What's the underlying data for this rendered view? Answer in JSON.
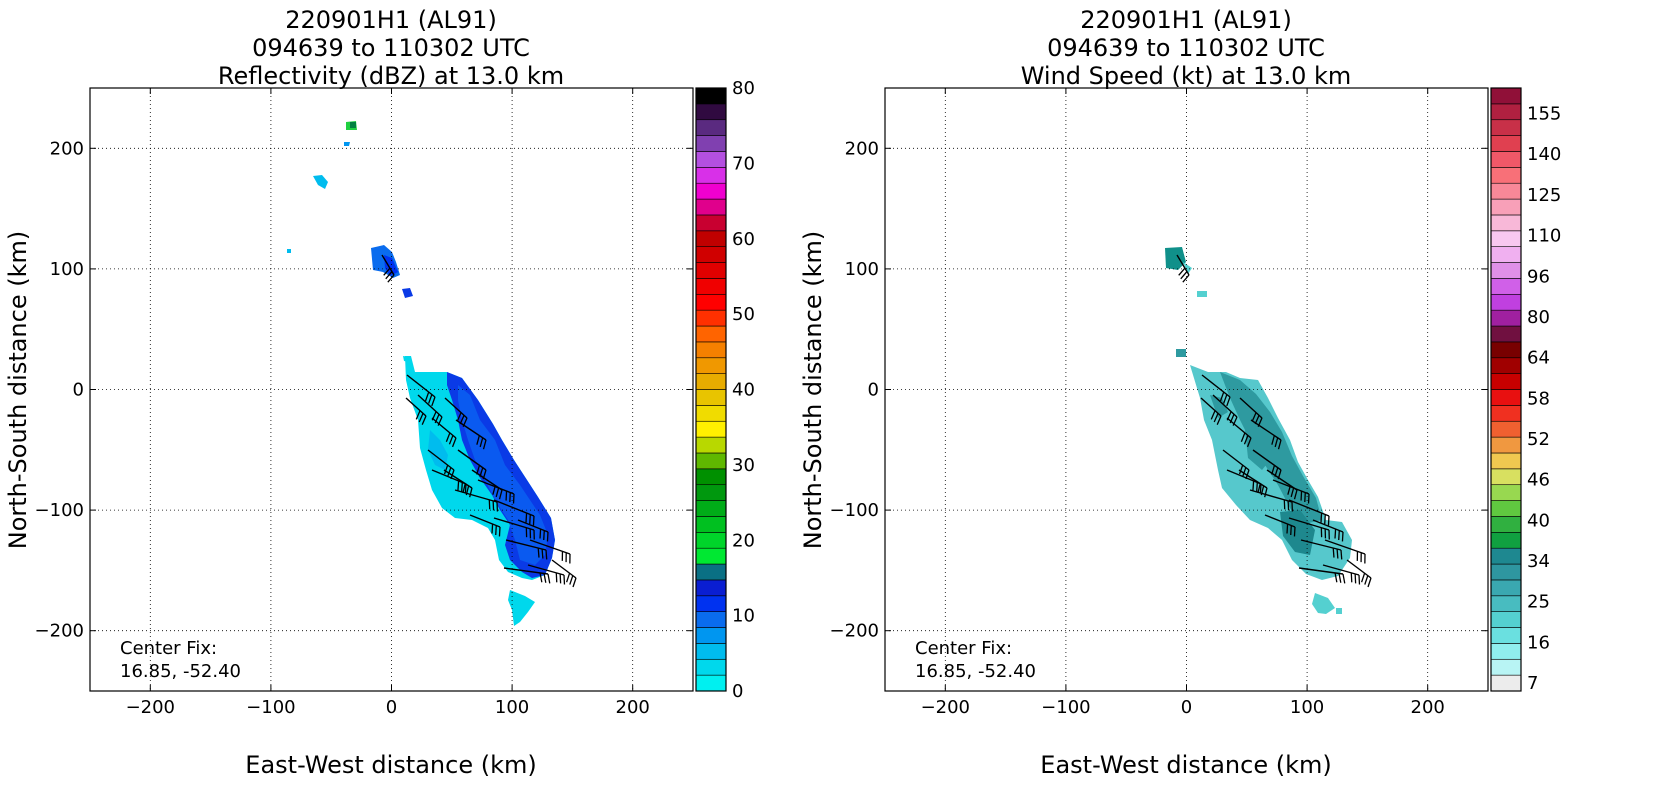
{
  "chart_data": [
    {
      "type": "heatmap",
      "title_lines": [
        "220901H1 (AL91)",
        "094639 to 110302 UTC",
        "Reflectivity (dBZ) at 13.0 km"
      ],
      "xlabel": "East-West distance (km)",
      "ylabel": "North-South distance (km)",
      "xlim": [
        -250,
        250
      ],
      "ylim": [
        -250,
        250
      ],
      "xticks": [
        -200,
        -100,
        0,
        100,
        200
      ],
      "yticks": [
        -200,
        -100,
        0,
        100,
        200
      ],
      "grid": true,
      "annotation": [
        "Center Fix:",
        "16.85, -52.40"
      ],
      "colorbar": {
        "min": 0,
        "max": 80,
        "ticks": [
          0,
          10,
          20,
          30,
          40,
          50,
          60,
          70,
          80
        ],
        "colors": [
          "#00f0f0",
          "#00d8ec",
          "#00bcee",
          "#0096f0",
          "#0a6cee",
          "#0032f0",
          "#0a1ed2",
          "#0a7084",
          "#00e832",
          "#00d42a",
          "#00c020",
          "#00ac18",
          "#00980e",
          "#009000",
          "#5fb800",
          "#b8d800",
          "#fff000",
          "#f0dc00",
          "#e8c400",
          "#e8ac00",
          "#f09800",
          "#f58000",
          "#ff6400",
          "#ff3000",
          "#ff0000",
          "#f00000",
          "#e00000",
          "#d00000",
          "#c00000",
          "#c80030",
          "#e0008c",
          "#f000d0",
          "#d830e8",
          "#b450e0",
          "#8040b0",
          "#5a2a80",
          "#300a40",
          "#000000"
        ]
      },
      "echo_cells_dbz": [
        {
          "x": 5,
          "y": -8,
          "value": 4
        },
        {
          "x": 35,
          "y": -25,
          "value": 5
        },
        {
          "x": 55,
          "y": -45,
          "value": 4
        },
        {
          "x": 60,
          "y": -80,
          "value": 4
        },
        {
          "x": 70,
          "y": -20,
          "value": 11
        },
        {
          "x": 90,
          "y": -60,
          "value": 11
        },
        {
          "x": 115,
          "y": -125,
          "value": 11
        },
        {
          "x": 110,
          "y": -165,
          "value": 4
        },
        {
          "x": -10,
          "y": 105,
          "value": 9
        },
        {
          "x": -30,
          "y": 218,
          "value": 24
        },
        {
          "x": -55,
          "y": 170,
          "value": 4
        }
      ]
    },
    {
      "type": "heatmap",
      "title_lines": [
        "220901H1 (AL91)",
        "094639 to 110302 UTC",
        "Wind Speed (kt) at 13.0 km"
      ],
      "xlabel": "East-West distance (km)",
      "ylabel": "North-South distance (km)",
      "xlim": [
        -250,
        250
      ],
      "ylim": [
        -250,
        250
      ],
      "xticks": [
        -200,
        -100,
        0,
        100,
        200
      ],
      "yticks": [
        -200,
        -100,
        0,
        100,
        200
      ],
      "grid": true,
      "annotation": [
        "Center Fix:",
        "16.85, -52.40"
      ],
      "colorbar": {
        "ticks": [
          "7",
          "16",
          "25",
          "34",
          "40",
          "46",
          "52",
          "58",
          "64",
          "80",
          "96",
          "110",
          "125",
          "140",
          "155"
        ],
        "colors": [
          "#ececec",
          "#b8f4f4",
          "#90eeee",
          "#6ae0e0",
          "#54d0d0",
          "#48bcc0",
          "#3aa8b0",
          "#2e96a0",
          "#1e8890",
          "#10a040",
          "#30b040",
          "#60c840",
          "#98d850",
          "#d8e060",
          "#f0c850",
          "#f09840",
          "#f06030",
          "#f03020",
          "#e81010",
          "#c80000",
          "#a00000",
          "#780000",
          "#701040",
          "#a020a0",
          "#c040e0",
          "#d060e8",
          "#e090e8",
          "#f0b0f0",
          "#f8c8f0",
          "#f8b8d8",
          "#f8a0b8",
          "#f88898",
          "#f87078",
          "#f05868",
          "#e04050",
          "#c83048",
          "#b02040",
          "#901038"
        ]
      },
      "echo_cells_kt": [
        {
          "x": 5,
          "y": -10,
          "value": 18
        },
        {
          "x": 40,
          "y": -30,
          "value": 20
        },
        {
          "x": 55,
          "y": -60,
          "value": 18
        },
        {
          "x": 90,
          "y": -70,
          "value": 25
        },
        {
          "x": 110,
          "y": -120,
          "value": 25
        },
        {
          "x": 115,
          "y": -178,
          "value": 18
        },
        {
          "x": -12,
          "y": 108,
          "value": 28
        }
      ]
    }
  ]
}
